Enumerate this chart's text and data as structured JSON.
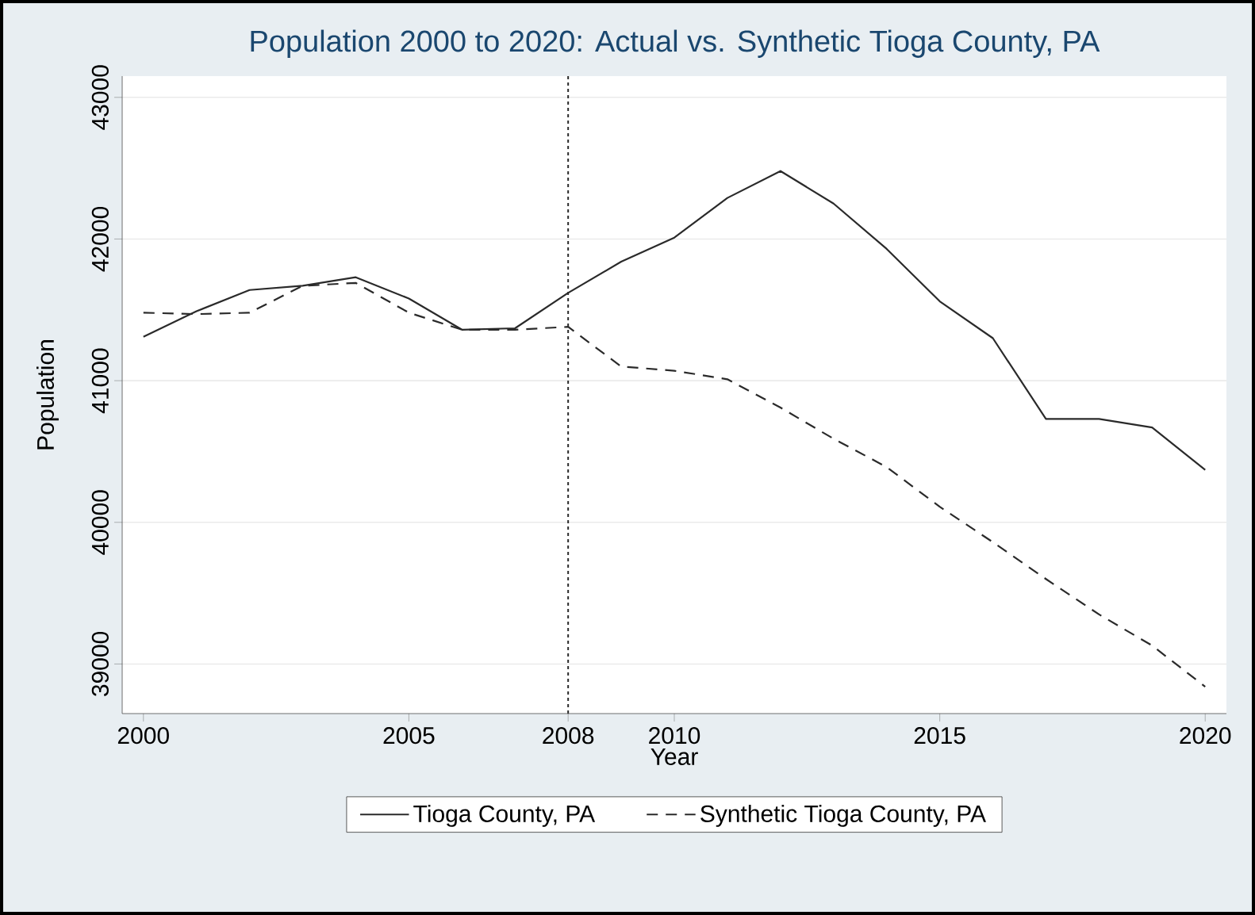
{
  "chart_data": {
    "type": "line",
    "title": "Population 2000 to 2020: Actual vs. Synthetic Tioga County, PA",
    "xlabel": "Year",
    "ylabel": "Population",
    "x": [
      2000,
      2001,
      2002,
      2003,
      2004,
      2005,
      2006,
      2007,
      2008,
      2009,
      2010,
      2011,
      2012,
      2013,
      2014,
      2015,
      2016,
      2017,
      2018,
      2019,
      2020
    ],
    "series": [
      {
        "name": "Tioga County, PA",
        "color": "#2a2a2a",
        "line_style": "solid",
        "values": [
          41310,
          41490,
          41640,
          41670,
          41730,
          41580,
          41360,
          41370,
          41620,
          41840,
          42010,
          42290,
          42480,
          42250,
          41930,
          41560,
          41300,
          40730,
          40730,
          40670,
          40370
        ]
      },
      {
        "name": "Synthetic Tioga County, PA",
        "color": "#2a2a2a",
        "line_style": "dashed",
        "values": [
          41480,
          41470,
          41480,
          41670,
          41690,
          41480,
          41360,
          41360,
          41380,
          41100,
          41070,
          41010,
          40810,
          40590,
          40390,
          40110,
          39860,
          39600,
          39350,
          39130,
          38840
        ]
      }
    ],
    "xlim": [
      1999.6,
      2020.4
    ],
    "ylim": [
      38650,
      43150
    ],
    "xticks": [
      2000,
      2005,
      2008,
      2010,
      2015,
      2020
    ],
    "yticks": [
      39000,
      40000,
      41000,
      42000,
      43000
    ],
    "ref_lines": [
      {
        "axis": "x",
        "value": 2008,
        "line_style": "dotted",
        "color": "#2a2a2a"
      }
    ],
    "grid": "y",
    "legend": "bottom",
    "marker": "none"
  }
}
